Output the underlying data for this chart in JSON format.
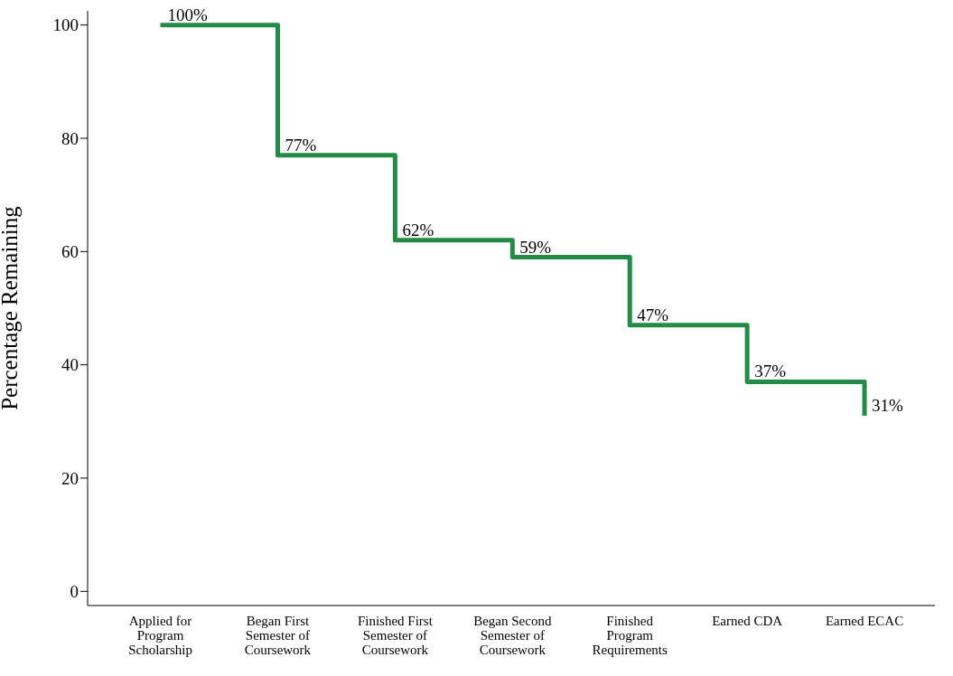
{
  "chart_data": {
    "type": "step",
    "ylabel": "Percentage Remaining",
    "categories": [
      "Applied for Program Scholarship",
      "Began First Semester of Coursework",
      "Finished First Semester of Coursework",
      "Began Second Semester of Coursework",
      "Finished Program Requirements",
      "Earned CDA",
      "Earned ECAC"
    ],
    "values": [
      100,
      77,
      62,
      59,
      47,
      37,
      31
    ],
    "value_labels": [
      "100%",
      "77%",
      "62%",
      "59%",
      "47%",
      "37%",
      "31%"
    ],
    "color": "#238b45",
    "ylim": [
      -2.5,
      102.5
    ],
    "yticks": [
      0,
      20,
      40,
      60,
      80,
      100
    ]
  }
}
